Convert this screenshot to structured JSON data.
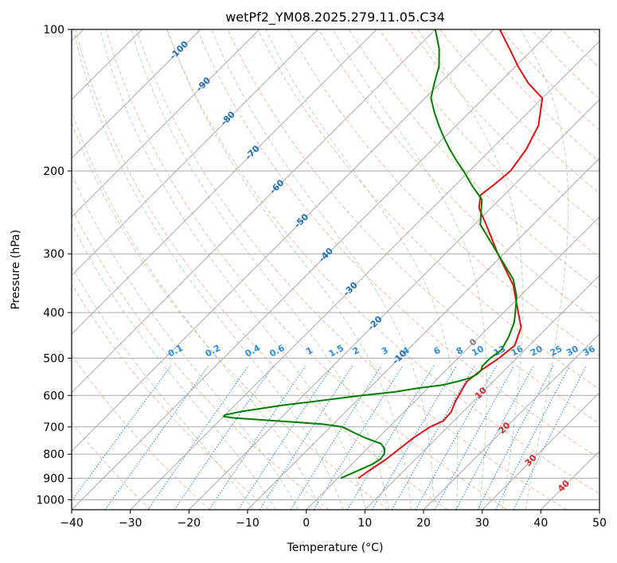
{
  "chart_data": {
    "type": "line",
    "title": "wetPf2_YM08.2025.279.11.05.C34",
    "xlabel": "Temperature (°C)",
    "ylabel": "Pressure (hPa)",
    "xlim": [
      -40,
      50
    ],
    "ylim": [
      1050,
      100
    ],
    "x_ticks": [
      -40,
      -30,
      -20,
      -10,
      0,
      10,
      20,
      30,
      40,
      50
    ],
    "y_ticks": [
      100,
      200,
      300,
      400,
      500,
      600,
      700,
      800,
      900,
      1000
    ],
    "skew_isotherms": [
      -100,
      -90,
      -80,
      -70,
      -60,
      -50,
      -40,
      -30,
      -20,
      -10,
      0,
      10,
      20,
      30,
      40
    ],
    "isotherm_labels": [
      "-100",
      "-90",
      "-80",
      "-70",
      "-60",
      "-50",
      "-40",
      "-30",
      "-20",
      "-10"
    ],
    "isotherm_labels_warm": [
      "0",
      "10",
      "20",
      "30",
      "40"
    ],
    "mixing_ratios": [
      "0.1",
      "0.2",
      "0.4",
      "0.6",
      "1",
      "1.5",
      "2",
      "3",
      "4",
      "6",
      "8",
      "10",
      "13",
      "16",
      "20",
      "25",
      "30",
      "36"
    ],
    "colors": {
      "temperature": "#e01010",
      "dewpoint": "#008000",
      "isotherm": "#aaaaaa",
      "dry_adiabat": "#f4a582",
      "moist_adiabat": "#9bd29b",
      "mixing_ratio": "#2b8ce6",
      "isotherm_label_cold": "#1f6fb4",
      "isotherm_label_warm": "#d62728"
    },
    "series": [
      {
        "name": "Temperature",
        "pressure": [
          900,
          870,
          820,
          780,
          740,
          700,
          680,
          650,
          620,
          580,
          560,
          530,
          500,
          470,
          430,
          400,
          350,
          300,
          260,
          240,
          225,
          215,
          200,
          180,
          160,
          140,
          130,
          120,
          110,
          100
        ],
        "values": [
          3.5,
          4,
          5,
          5.5,
          6,
          7,
          8.2,
          8,
          7,
          6,
          5.5,
          6,
          7,
          7.5,
          5.5,
          2.5,
          -3,
          -11,
          -18,
          -22,
          -24,
          -23.5,
          -23,
          -24,
          -26,
          -30,
          -35,
          -39.5,
          -44,
          -49
        ]
      },
      {
        "name": "Dew Point",
        "pressure": [
          900,
          880,
          860,
          840,
          820,
          800,
          780,
          760,
          740,
          720,
          700,
          690,
          680,
          670,
          665,
          660,
          650,
          640,
          630,
          620,
          610,
          600,
          590,
          580,
          570,
          560,
          550,
          540,
          530,
          520,
          500,
          480,
          450,
          420,
          400,
          370,
          340,
          300,
          260,
          230,
          215,
          200,
          190,
          180,
          170,
          160,
          150,
          140,
          130,
          120,
          110,
          100
        ],
        "values": [
          0.5,
          1.5,
          2.5,
          3.5,
          4,
          3.8,
          3,
          1.5,
          -2,
          -5,
          -8,
          -12,
          -20,
          -28,
          -30,
          -30,
          -28,
          -25,
          -22,
          -18,
          -14,
          -10,
          -5,
          -2,
          2,
          4,
          5.5,
          6,
          6,
          5.5,
          5.5,
          6,
          5,
          3.5,
          2,
          -0.5,
          -4,
          -11,
          -19,
          -23,
          -27,
          -31,
          -34,
          -37,
          -40,
          -43,
          -46,
          -49,
          -51,
          -53,
          -56,
          -60
        ]
      }
    ]
  }
}
